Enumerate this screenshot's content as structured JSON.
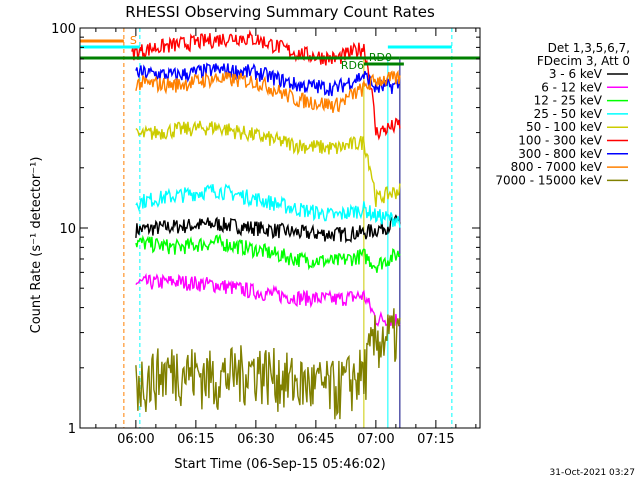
{
  "chart_data": {
    "type": "line",
    "title": "RHESSI Observing Summary Count Rates",
    "xlabel": "Start Time (06-Sep-15 05:46:02)",
    "ylabel": "Count Rate (s⁻¹ detector⁻¹)",
    "yscale": "log",
    "ylim": [
      1,
      100
    ],
    "xlim": [
      "05:46:02",
      "07:26:02"
    ],
    "x_ticks": [
      "06:00",
      "06:15",
      "06:30",
      "06:45",
      "07:00",
      "07:15"
    ],
    "y_ticks": [
      "1",
      "10",
      "100"
    ],
    "legend": {
      "placement": "right",
      "header": [
        "Det 1,3,5,6,7,",
        "FDecim 3, Att 0"
      ]
    },
    "series": [
      {
        "name": "3 - 6 keV",
        "color": "#000000",
        "x": [
          "06:00",
          "06:10",
          "06:20",
          "06:30",
          "06:40",
          "06:50",
          "06:57",
          "07:00",
          "07:06"
        ],
        "values": [
          9.8,
          10.2,
          10.5,
          10.0,
          9.5,
          9.3,
          9.5,
          9.8,
          10.8
        ]
      },
      {
        "name": "6 - 12 keV",
        "color": "#ff00ff",
        "x": [
          "06:00",
          "06:10",
          "06:20",
          "06:30",
          "06:40",
          "06:50",
          "06:57",
          "07:00",
          "07:06"
        ],
        "values": [
          5.3,
          5.4,
          5.2,
          4.8,
          4.5,
          4.4,
          4.6,
          3.5,
          3.5
        ]
      },
      {
        "name": "12 - 25 keV",
        "color": "#00ff00",
        "x": [
          "06:00",
          "06:10",
          "06:20",
          "06:30",
          "06:40",
          "06:50",
          "06:57",
          "07:00",
          "07:06"
        ],
        "values": [
          8.5,
          8.0,
          8.5,
          7.8,
          7.0,
          6.8,
          7.3,
          6.5,
          7.5
        ]
      },
      {
        "name": "25 - 50 keV",
        "color": "#00ffff",
        "x": [
          "06:00",
          "06:10",
          "06:20",
          "06:30",
          "06:40",
          "06:50",
          "06:57",
          "07:00",
          "07:06"
        ],
        "values": [
          13.5,
          14.5,
          15.5,
          14.0,
          12.5,
          11.5,
          12.5,
          11.5,
          11.0
        ]
      },
      {
        "name": "50 - 100 keV",
        "color": "#cccc00",
        "x": [
          "06:00",
          "06:10",
          "06:20",
          "06:30",
          "06:40",
          "06:50",
          "06:57",
          "07:00",
          "07:06"
        ],
        "values": [
          29,
          31,
          32,
          29,
          26,
          25,
          27,
          14,
          15.5
        ]
      },
      {
        "name": "100 - 300 keV",
        "color": "#ff0000",
        "x": [
          "05:59",
          "06:05",
          "06:15",
          "06:25",
          "06:30",
          "06:40",
          "06:50",
          "06:57",
          "07:00",
          "07:06"
        ],
        "values": [
          75,
          80,
          85,
          90,
          88,
          75,
          70,
          80,
          30,
          33
        ]
      },
      {
        "name": "300 - 800 keV",
        "color": "#0000ff",
        "x": [
          "06:00",
          "06:10",
          "06:20",
          "06:30",
          "06:40",
          "06:50",
          "06:57",
          "07:00",
          "07:06"
        ],
        "values": [
          60,
          58,
          62,
          60,
          52,
          50,
          58,
          50,
          52
        ]
      },
      {
        "name": "800 - 7000 keV",
        "color": "#ff8000",
        "x": [
          "06:00",
          "06:10",
          "06:20",
          "06:30",
          "06:40",
          "06:50",
          "06:57",
          "07:00",
          "07:06"
        ],
        "values": [
          53,
          52,
          56,
          54,
          44,
          41,
          50,
          55,
          56
        ]
      },
      {
        "name": "7000 - 15000 keV",
        "color": "#808000",
        "x": [
          "06:00",
          "06:10",
          "06:20",
          "06:30",
          "06:40",
          "06:50",
          "06:57",
          "07:00",
          "07:06"
        ],
        "values": [
          1.7,
          2.0,
          1.8,
          2.0,
          1.7,
          1.6,
          1.9,
          2.8,
          3.0
        ]
      }
    ],
    "annotations": [
      {
        "text": "S",
        "color": "#ff8000"
      },
      {
        "text": "RD0",
        "color": "#008000"
      },
      {
        "text": "RD6",
        "color": "#008000"
      }
    ],
    "timestamp": "31-Oct-2021 03:27"
  }
}
